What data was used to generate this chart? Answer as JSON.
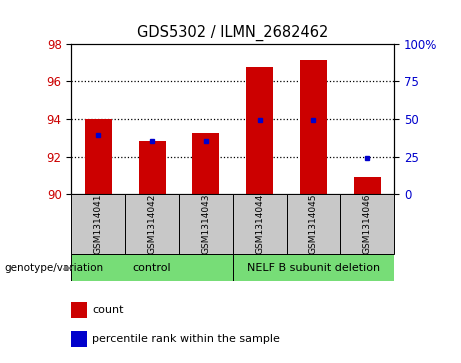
{
  "title": "GDS5302 / ILMN_2682462",
  "samples": [
    "GSM1314041",
    "GSM1314042",
    "GSM1314043",
    "GSM1314044",
    "GSM1314045",
    "GSM1314046"
  ],
  "count_values": [
    94.0,
    92.85,
    93.25,
    96.75,
    97.15,
    90.9
  ],
  "percentile_values": [
    93.15,
    92.82,
    92.82,
    93.92,
    93.92,
    91.92
  ],
  "ylim_left": [
    90,
    98
  ],
  "ylim_right": [
    0,
    100
  ],
  "yticks_left": [
    90,
    92,
    94,
    96,
    98
  ],
  "yticks_right": [
    0,
    25,
    50,
    75,
    100
  ],
  "bar_color": "#CC0000",
  "blue_color": "#0000CC",
  "bar_width": 0.5,
  "baseline": 90,
  "legend_items": [
    {
      "label": "count",
      "color": "#CC0000"
    },
    {
      "label": "percentile rank within the sample",
      "color": "#0000CC"
    }
  ],
  "grid_color": "black",
  "sample_box_color": "#C8C8C8",
  "group_label": "genotype/variation",
  "control_label": "control",
  "nelf_label": "NELF B subunit deletion",
  "group_color": "#77DD77"
}
